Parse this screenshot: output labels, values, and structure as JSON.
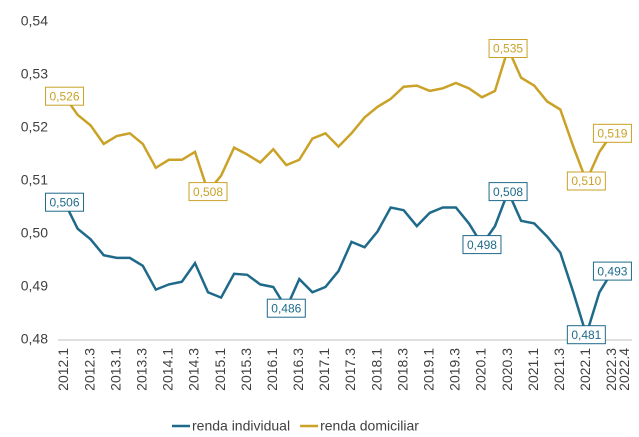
{
  "chart_data": {
    "type": "line",
    "categories": [
      "2012.1",
      null,
      "2012.3",
      null,
      "2013.1",
      null,
      "2013.3",
      null,
      "2014.1",
      null,
      "2014.3",
      null,
      "2015.1",
      null,
      "2015.3",
      null,
      "2016.1",
      null,
      "2016.3",
      null,
      "2017.1",
      null,
      "2017.3",
      null,
      "2018.1",
      null,
      "2018.3",
      null,
      "2019.1",
      null,
      "2019.3",
      null,
      "2020.1",
      null,
      "2020.3",
      null,
      "2021.1",
      null,
      "2021.3",
      null,
      "2022.1",
      null,
      "2022.3",
      "2022.4"
    ],
    "series": [
      {
        "name": "renda individual",
        "color": "#1f6a8a",
        "values": [
          0.506,
          0.501,
          0.499,
          0.496,
          0.4955,
          0.4955,
          0.494,
          0.4895,
          0.4905,
          0.491,
          0.4945,
          0.489,
          0.488,
          0.4925,
          0.4923,
          0.4905,
          0.49,
          0.486,
          0.4915,
          0.489,
          0.49,
          0.493,
          0.4985,
          0.4975,
          0.5005,
          0.505,
          0.5045,
          0.5015,
          0.504,
          0.505,
          0.505,
          0.502,
          0.498,
          0.5015,
          0.508,
          0.5025,
          0.502,
          0.4995,
          0.4965,
          0.489,
          0.481,
          0.489,
          0.493,
          null
        ],
        "value_labels": [
          "0,506",
          null,
          null,
          null,
          null,
          null,
          null,
          null,
          null,
          null,
          null,
          null,
          null,
          null,
          null,
          null,
          null,
          "0,486",
          null,
          null,
          null,
          null,
          null,
          null,
          null,
          null,
          null,
          null,
          null,
          null,
          null,
          null,
          "0,498",
          null,
          "0,508",
          null,
          null,
          null,
          null,
          null,
          "0,481",
          null,
          "0,493",
          null
        ]
      },
      {
        "name": "renda domiciliar",
        "color": "#c9a227",
        "values": [
          0.526,
          0.5225,
          0.5205,
          0.517,
          0.5185,
          0.519,
          0.517,
          0.5125,
          0.514,
          0.514,
          0.5155,
          0.508,
          0.511,
          0.5163,
          0.515,
          0.5135,
          0.516,
          0.513,
          0.514,
          0.518,
          0.519,
          0.5165,
          0.519,
          0.522,
          0.524,
          0.5255,
          0.5278,
          0.528,
          0.527,
          0.5275,
          0.5285,
          0.5275,
          0.5258,
          0.527,
          0.535,
          0.5295,
          0.528,
          0.525,
          0.5235,
          0.5165,
          0.51,
          0.5155,
          0.519,
          null
        ],
        "value_labels": [
          "0,526",
          null,
          null,
          null,
          null,
          null,
          null,
          null,
          null,
          null,
          null,
          "0,508",
          null,
          null,
          null,
          null,
          null,
          null,
          null,
          null,
          null,
          null,
          null,
          null,
          null,
          null,
          null,
          null,
          null,
          null,
          null,
          null,
          null,
          null,
          "0,535",
          null,
          null,
          null,
          null,
          null,
          "0,510",
          null,
          "0,519",
          null
        ]
      }
    ],
    "ylim": [
      0.48,
      0.54
    ],
    "yticks": [
      {
        "value": 0.48,
        "label": "0,48"
      },
      {
        "value": 0.49,
        "label": "0,49"
      },
      {
        "value": 0.5,
        "label": "0,50"
      },
      {
        "value": 0.51,
        "label": "0,51"
      },
      {
        "value": 0.52,
        "label": "0,52"
      },
      {
        "value": 0.53,
        "label": "0,53"
      },
      {
        "value": 0.54,
        "label": "0,54"
      }
    ],
    "grid": false,
    "legend": "bottom"
  }
}
